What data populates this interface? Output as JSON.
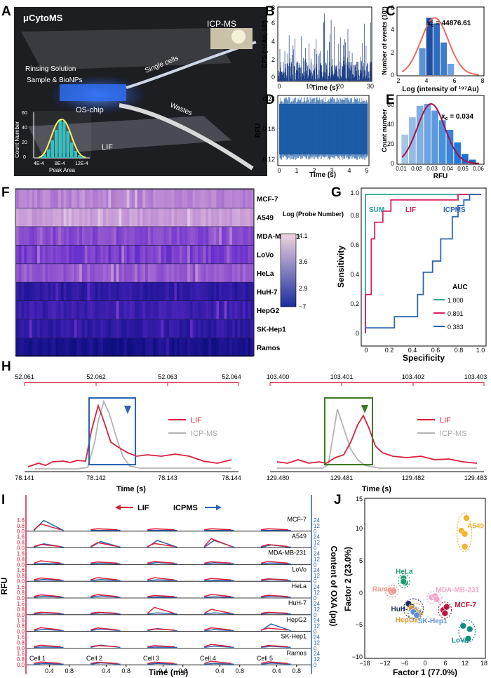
{
  "colors": {
    "lif": "#d9203a",
    "icp": "#b3b3b3",
    "blue": "#2b64b0",
    "navy": "#1e3a8a",
    "green": "#2aa6a0",
    "teal": "#1f9b8f",
    "photoDark": "#202124"
  },
  "panels": [
    "A",
    "B",
    "C",
    "D",
    "E",
    "F",
    "G",
    "H",
    "I",
    "J"
  ],
  "photo": {
    "labels": [
      "μCytoMS",
      "ICP-MS",
      "Rinsing Solution",
      "Sample & BioNPs",
      "Single cells",
      "Wastes",
      "OS-chip",
      "LIF"
    ],
    "inset": {
      "ylabel": "Count Number",
      "xlabel": "Peak Area",
      "yticks": [
        "0",
        "20",
        "40",
        "60"
      ],
      "xticks": [
        "4E-4",
        "8E-4",
        "12E-4"
      ]
    }
  },
  "chart_data": [
    {
      "panel": "B",
      "type": "line",
      "ylabel": "CPS (¹⁹⁷Au, 10³)",
      "xlabel": "Time (s)",
      "xlim": [
        0,
        30
      ],
      "ylim": [
        0,
        8
      ],
      "xticks": [
        "0",
        "10",
        "20",
        "30"
      ],
      "yticks": [
        "0",
        "2",
        "4",
        "6",
        "8"
      ]
    },
    {
      "panel": "C",
      "type": "bar",
      "ylabel": "Number of events (10³)",
      "xlabel": "Log (intensity of ¹⁹⁷Au)",
      "xlim": [
        2,
        8
      ],
      "ylim": [
        0,
        6
      ],
      "xticks": [
        "2",
        "4",
        "6",
        "8"
      ],
      "yticks": [
        "0",
        "2",
        "4",
        "6"
      ],
      "annotation": "x",
      "annotation_sub": "c",
      "annotation_value": " = 44876.61",
      "bins": [
        3.75,
        4.25,
        4.75,
        5.25,
        5.75
      ],
      "values": [
        2.4,
        5.1,
        4.6,
        2.9,
        1.0
      ]
    },
    {
      "panel": "D",
      "type": "line",
      "ylabel": "RFU",
      "xlabel": "Time (s)",
      "xlim": [
        0,
        5
      ],
      "ylim": [
        0.11,
        0.25
      ],
      "xticks": [
        "0",
        "1",
        "2",
        "3",
        "4",
        "5"
      ],
      "yticks": [
        "0.12",
        "0.18",
        "0.24"
      ]
    },
    {
      "panel": "E",
      "type": "bar",
      "ylabel": "Count number",
      "xlabel": "RFU",
      "xlim": [
        0.005,
        0.062
      ],
      "ylim": [
        0,
        70
      ],
      "xticks": [
        "0.01",
        "0.02",
        "0.03",
        "0.04",
        "0.05",
        "0.06"
      ],
      "yticks": [
        "0",
        "20",
        "40",
        "60"
      ],
      "annotation": "x",
      "annotation_sub": "c",
      "annotation_value": " = 0.034",
      "bins": [
        0.01,
        0.015,
        0.02,
        0.025,
        0.03,
        0.035,
        0.04,
        0.045,
        0.05,
        0.055
      ],
      "values": [
        30,
        48,
        60,
        62,
        55,
        45,
        35,
        22,
        10,
        4
      ]
    },
    {
      "panel": "F",
      "type": "heatmap",
      "rows": [
        "MCF-7",
        "A549",
        "MDA-MB-231",
        "LoVo",
        "HeLa",
        "HuH-7",
        "HepG2",
        "SK-Hep1",
        "Ramos"
      ],
      "colorbar": {
        "title": "Log (Probe Number)",
        "ticks": [
          "4.1",
          "3.6",
          "2.9",
          "~7"
        ]
      }
    },
    {
      "panel": "G",
      "type": "line",
      "xlabel": "Specificity",
      "ylabel": "Sensitivity",
      "xlim": [
        0,
        1
      ],
      "ylim": [
        0,
        1
      ],
      "xticks": [
        "0",
        "0.2",
        "0.4",
        "0.6",
        "0.8",
        "1.0"
      ],
      "yticks": [
        "0",
        "0.2",
        "0.4",
        "0.6",
        "0.8",
        "1.0"
      ],
      "legend_title": "AUC",
      "series": [
        {
          "name": "SUM",
          "auc": "1.000",
          "points": [
            [
              0,
              0
            ],
            [
              0,
              1
            ],
            [
              1,
              1
            ]
          ]
        },
        {
          "name": "LIF",
          "auc": "0.891",
          "points": [
            [
              0,
              0
            ],
            [
              0,
              0.28
            ],
            [
              0.05,
              0.28
            ],
            [
              0.05,
              0.68
            ],
            [
              0.08,
              0.68
            ],
            [
              0.08,
              0.8
            ],
            [
              0.15,
              0.8
            ],
            [
              0.15,
              0.88
            ],
            [
              0.22,
              0.88
            ],
            [
              0.22,
              0.96
            ],
            [
              0.8,
              0.96
            ],
            [
              0.8,
              1.0
            ],
            [
              1,
              1
            ]
          ]
        },
        {
          "name": "ICPMS",
          "auc": "0.383",
          "points": [
            [
              0,
              0.04
            ],
            [
              0.25,
              0.04
            ],
            [
              0.25,
              0.12
            ],
            [
              0.45,
              0.12
            ],
            [
              0.45,
              0.28
            ],
            [
              0.5,
              0.28
            ],
            [
              0.5,
              0.44
            ],
            [
              0.58,
              0.44
            ],
            [
              0.58,
              0.52
            ],
            [
              0.65,
              0.52
            ],
            [
              0.65,
              0.68
            ],
            [
              0.75,
              0.68
            ],
            [
              0.75,
              0.84
            ],
            [
              0.8,
              0.84
            ],
            [
              0.8,
              0.92
            ],
            [
              0.85,
              0.92
            ],
            [
              0.85,
              0.96
            ],
            [
              0.9,
              0.96
            ],
            [
              0.9,
              1.0
            ],
            [
              1,
              1
            ]
          ]
        }
      ]
    },
    {
      "panel": "H",
      "type": "line",
      "xlabel": "Time (s)",
      "left": {
        "top_ticks": [
          "52.061",
          "52.062",
          "52.063",
          "52.064"
        ],
        "bottom_ticks": [
          "78.141",
          "78.142",
          "78.143",
          "78.144"
        ]
      },
      "right": {
        "top_ticks": [
          "103.400",
          "103.401",
          "103.402",
          "103.403"
        ],
        "bottom_ticks": [
          "129.480",
          "129.481",
          "129.482",
          "129.483"
        ]
      },
      "legend": [
        "LIF",
        "ICP-MS"
      ]
    },
    {
      "panel": "I",
      "type": "line",
      "ylabel_left": "RFU",
      "ylabel_right": "Content of OXA (pg)",
      "xlabel": "Time (ms)",
      "left_ticks": [
        "0.0",
        "0.8",
        "1.6"
      ],
      "right_ticks": [
        "0",
        "12",
        "24"
      ],
      "xticks": [
        "0.4",
        "0.8"
      ],
      "legend": [
        "LIF",
        "ICPMS"
      ],
      "rows": [
        "MCF-7",
        "A549",
        "MDA-MB-231",
        "LoVo",
        "HeLa",
        "HuH-7",
        "HepG2",
        "SK-Hep1",
        "Ramos"
      ],
      "cells": [
        "Cell 1",
        "Cell 2",
        "Cell 3",
        "Cell 4",
        "Cell 5"
      ]
    },
    {
      "panel": "J",
      "type": "scatter",
      "xlabel": "Factor 1 (77.0%)",
      "ylabel": "Factor 2 (23.0%)",
      "xlim": [
        -18,
        18
      ],
      "ylim": [
        -10,
        15
      ],
      "xticks": [
        "−18",
        "−12",
        "−6",
        "0",
        "6",
        "12",
        "18"
      ],
      "yticks": [
        "−10",
        "−5",
        "0",
        "5",
        "10",
        "15"
      ],
      "groups": [
        {
          "name": "A549",
          "color": "#f2b22f",
          "points": [
            [
              12.5,
              12.0
            ],
            [
              11.0,
              10.0
            ],
            [
              12.0,
              9.5
            ],
            [
              12.0,
              7.5
            ]
          ]
        },
        {
          "name": "HeLa",
          "color": "#1b9b6e",
          "points": [
            [
              -6.5,
              2.5
            ],
            [
              -6.0,
              1.8
            ],
            [
              -6.5,
              2.0
            ]
          ]
        },
        {
          "name": "Ramos",
          "color": "#f29b8f",
          "points": [
            [
              -10.5,
              0.6
            ],
            [
              -10.0,
              0.3
            ],
            [
              -9.5,
              0.5
            ]
          ]
        },
        {
          "name": "MDA-MB-231",
          "color": "#f0a6c8",
          "points": [
            [
              2.0,
              -0.5
            ],
            [
              3.0,
              -0.3
            ],
            [
              3.5,
              -0.8
            ]
          ]
        },
        {
          "name": "MCF-7",
          "color": "#b5183e",
          "points": [
            [
              5.5,
              -2.5
            ],
            [
              6.5,
              -2.0
            ],
            [
              6.0,
              -3.0
            ]
          ]
        },
        {
          "name": "HuH-7",
          "color": "#1c2d5a",
          "points": [
            [
              -5.0,
              -1.5
            ],
            [
              -4.0,
              -2.0
            ],
            [
              -3.0,
              -2.5
            ],
            [
              -2.0,
              -3.0
            ]
          ]
        },
        {
          "name": "HepG2",
          "color": "#e09a2c",
          "points": [
            [
              -4.0,
              -2.2
            ],
            [
              -3.0,
              -2.6
            ],
            [
              -2.0,
              -3.2
            ]
          ]
        },
        {
          "name": "SK-Hep1",
          "color": "#5b8fd8",
          "points": [
            [
              -3.5,
              -2.8
            ],
            [
              -2.5,
              -3.3
            ]
          ]
        },
        {
          "name": "LoVo",
          "color": "#128b86",
          "points": [
            [
              11.5,
              -5.0
            ],
            [
              13.5,
              -5.5
            ],
            [
              13.0,
              -7.0
            ]
          ]
        }
      ]
    }
  ]
}
